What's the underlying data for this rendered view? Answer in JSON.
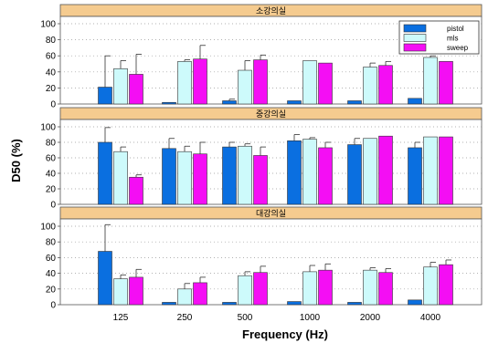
{
  "figure": {
    "ylabel": "D50 (%)",
    "xlabel": "Frequency (Hz)"
  },
  "colors": {
    "pistol": "#0a6fe0",
    "mls": "#cdfafb",
    "sweep": "#f40ef4",
    "panel_header": "#f5cb8f",
    "error_bar": "#333333"
  },
  "chart_data": [
    {
      "type": "bar",
      "title": "소강의실",
      "categories": [
        "125",
        "250",
        "500",
        "1000",
        "2000",
        "4000"
      ],
      "ylim": [
        0,
        100
      ],
      "yticks": [
        0,
        20,
        40,
        60,
        80,
        100
      ],
      "grid": true,
      "legend_position": "top-right",
      "series": [
        {
          "name": "pistol",
          "values": [
            21,
            2,
            4,
            4,
            4,
            7
          ],
          "errors": [
            39,
            0,
            2,
            0,
            0,
            0
          ]
        },
        {
          "name": "mls",
          "values": [
            44,
            53,
            42,
            54,
            46,
            58
          ],
          "errors": [
            10,
            2,
            12,
            0,
            5,
            2
          ]
        },
        {
          "name": "sweep",
          "values": [
            37,
            56,
            55,
            51,
            48,
            53
          ],
          "errors": [
            25,
            17,
            6,
            0,
            5,
            0
          ]
        }
      ]
    },
    {
      "type": "bar",
      "title": "중강의실",
      "categories": [
        "125",
        "250",
        "500",
        "1000",
        "2000",
        "4000"
      ],
      "ylim": [
        0,
        100
      ],
      "yticks": [
        0,
        20,
        40,
        60,
        80,
        100
      ],
      "grid": true,
      "series": [
        {
          "name": "pistol",
          "values": [
            80,
            72,
            74,
            82,
            77,
            73
          ],
          "errors": [
            19,
            13,
            6,
            8,
            8,
            7
          ]
        },
        {
          "name": "mls",
          "values": [
            68,
            68,
            75,
            84,
            85,
            87
          ],
          "errors": [
            6,
            7,
            3,
            2,
            0,
            0
          ]
        },
        {
          "name": "sweep",
          "values": [
            35,
            65,
            63,
            73,
            88,
            87
          ],
          "errors": [
            3,
            15,
            11,
            7,
            0,
            0
          ]
        }
      ]
    },
    {
      "type": "bar",
      "title": "대강의실",
      "categories": [
        "125",
        "250",
        "500",
        "1000",
        "2000",
        "4000"
      ],
      "ylim": [
        0,
        100
      ],
      "yticks": [
        0,
        20,
        40,
        60,
        80,
        100
      ],
      "grid": true,
      "series": [
        {
          "name": "pistol",
          "values": [
            68,
            3,
            3,
            4,
            3,
            6
          ],
          "errors": [
            34,
            0,
            0,
            0,
            0,
            0
          ]
        },
        {
          "name": "mls",
          "values": [
            33,
            20,
            37,
            42,
            44,
            48
          ],
          "errors": [
            5,
            7,
            5,
            8,
            3,
            6
          ]
        },
        {
          "name": "sweep",
          "values": [
            35,
            28,
            41,
            44,
            41,
            51
          ],
          "errors": [
            10,
            7,
            8,
            8,
            5,
            6
          ]
        }
      ]
    }
  ]
}
